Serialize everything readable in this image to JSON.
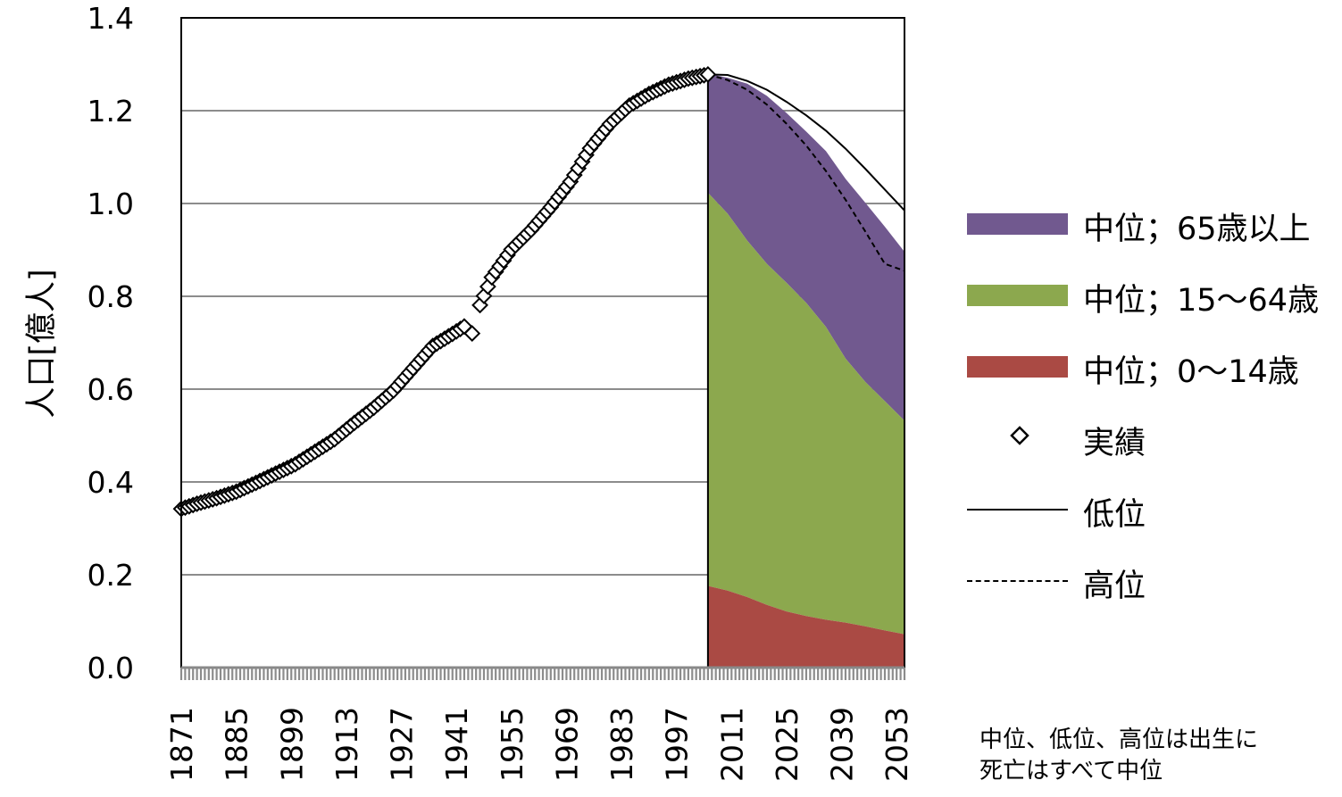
{
  "chart_data": {
    "type": "area",
    "ylabel": "人口[億人]",
    "ylim": [
      0,
      1.4
    ],
    "yticks": [
      "0.0",
      "0.2",
      "0.4",
      "0.6",
      "0.8",
      "1.0",
      "1.2",
      "1.4"
    ],
    "xlim": [
      1871,
      2055
    ],
    "xticks": [
      "1871",
      "1885",
      "1899",
      "1913",
      "1927",
      "1941",
      "1955",
      "1969",
      "1983",
      "1997",
      "2011",
      "2025",
      "2039",
      "2053"
    ],
    "grid": true,
    "legend_position": "right",
    "projection_years": [
      2005,
      2010,
      2015,
      2020,
      2025,
      2030,
      2035,
      2040,
      2045,
      2050,
      2055
    ],
    "series": [
      {
        "name": "中位；65歳以上",
        "kind": "stacked-area",
        "color": "#71598f",
        "values": [
          0.257,
          0.293,
          0.338,
          0.362,
          0.366,
          0.369,
          0.379,
          0.387,
          0.386,
          0.376,
          0.364
        ]
      },
      {
        "name": "中位；15～64歳",
        "kind": "stacked-area",
        "color": "#8ca84e",
        "values": [
          0.847,
          0.812,
          0.768,
          0.735,
          0.708,
          0.675,
          0.631,
          0.569,
          0.527,
          0.494,
          0.46
        ]
      },
      {
        "name": "中位；0～14歳",
        "kind": "stacked-area",
        "color": "#aa4a44",
        "values": [
          0.176,
          0.166,
          0.152,
          0.135,
          0.121,
          0.111,
          0.103,
          0.097,
          0.089,
          0.08,
          0.072
        ]
      },
      {
        "name": "実績",
        "kind": "marker",
        "marker": "diamond",
        "x": [
          1871,
          1875,
          1880,
          1885,
          1890,
          1895,
          1900,
          1905,
          1910,
          1915,
          1920,
          1925,
          1930,
          1935,
          1940,
          1943,
          1945,
          1947,
          1950,
          1955,
          1960,
          1965,
          1970,
          1975,
          1980,
          1985,
          1990,
          1995,
          2000,
          2005
        ],
        "values": [
          0.342,
          0.353,
          0.365,
          0.379,
          0.398,
          0.418,
          0.438,
          0.465,
          0.492,
          0.527,
          0.56,
          0.597,
          0.645,
          0.693,
          0.719,
          0.735,
          0.72,
          0.781,
          0.841,
          0.901,
          0.943,
          0.992,
          1.047,
          1.119,
          1.171,
          1.211,
          1.236,
          1.256,
          1.269,
          1.278
        ]
      },
      {
        "name": "低位",
        "kind": "line",
        "style": "solid",
        "x": [
          2005,
          2010,
          2015,
          2020,
          2025,
          2030,
          2035,
          2040,
          2045,
          2050,
          2055
        ],
        "values": [
          1.278,
          1.277,
          1.264,
          1.245,
          1.219,
          1.19,
          1.157,
          1.118,
          1.075,
          1.03,
          0.985
        ]
      },
      {
        "name": "高位",
        "kind": "line",
        "style": "dashed",
        "x": [
          2005,
          2010,
          2015,
          2020,
          2025,
          2030,
          2035,
          2040,
          2045,
          2050,
          2055
        ],
        "values": [
          1.278,
          1.266,
          1.245,
          1.213,
          1.172,
          1.125,
          1.07,
          1.008,
          0.94,
          0.87,
          0.855
        ]
      }
    ]
  },
  "note": {
    "line1": "中位、低位、高位は出生に",
    "line2": "死亡はすべて中位"
  }
}
